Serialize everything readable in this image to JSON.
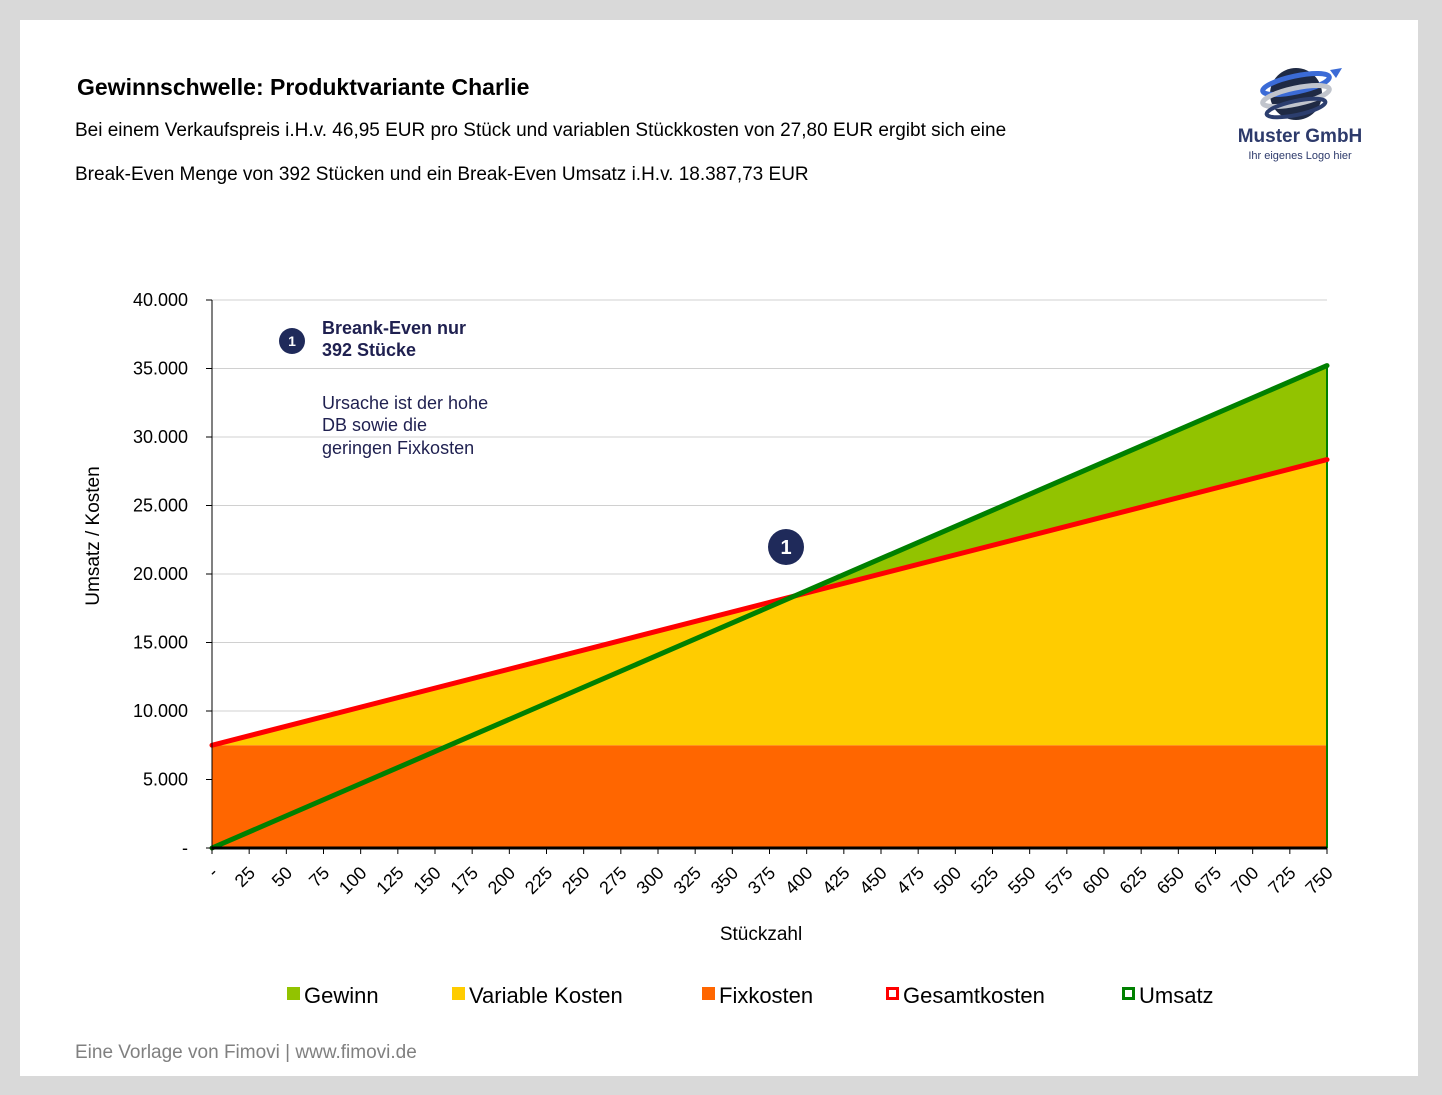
{
  "header": {
    "title": "Gewinnschwelle: Produktvariante Charlie",
    "line1": "Bei einem Verkaufspreis i.H.v. 46,95 EUR pro Stück und variablen Stückkosten von 27,80 EUR ergibt sich eine",
    "line2": "Break-Even Menge von 392 Stücken und ein Break-Even Umsatz i.H.v. 18.387,73 EUR"
  },
  "logo": {
    "name": "Muster GmbH",
    "sub": "Ihr eigenes Logo hier"
  },
  "footer": "Eine Vorlage von Fimovi  |  www.fimovi.de",
  "annotation": {
    "badge": "1",
    "bold1": "Breank-Even nur",
    "bold2": "392 Stücke",
    "text1": "Ursache ist der hohe",
    "text2": "DB sowie die",
    "text3": "geringen Fixkosten"
  },
  "chart_data": {
    "type": "area",
    "xlabel": "Stückzahl",
    "ylabel": "Umsatz / Kosten",
    "xlim": [
      0,
      750
    ],
    "ylim": [
      0,
      40000
    ],
    "grid": true,
    "legend_position": "bottom",
    "x_ticks": [
      "-",
      "25",
      "50",
      "75",
      "100",
      "125",
      "150",
      "175",
      "200",
      "225",
      "250",
      "275",
      "300",
      "325",
      "350",
      "375",
      "400",
      "425",
      "450",
      "475",
      "500",
      "525",
      "550",
      "575",
      "600",
      "625",
      "650",
      "675",
      "700",
      "725",
      "750"
    ],
    "y_ticks": [
      "-",
      "5.000",
      "10.000",
      "15.000",
      "20.000",
      "25.000",
      "30.000",
      "35.000",
      "40.000"
    ],
    "y_tick_values": [
      0,
      5000,
      10000,
      15000,
      20000,
      25000,
      30000,
      35000,
      40000
    ],
    "unit_price": 46.95,
    "unit_variable_cost": 27.8,
    "fixed_costs": 7500,
    "break_even_quantity": 392,
    "break_even_revenue": 18387.73,
    "series": [
      {
        "name": "Gewinn",
        "kind": "area",
        "color": "#92c300",
        "x": [
          392,
          750
        ],
        "lower": [
          18387.73,
          28350
        ],
        "upper": [
          18387.73,
          35212.5
        ]
      },
      {
        "name": "Variable Kosten",
        "kind": "area",
        "color": "#ffcc00",
        "x": [
          0,
          750
        ],
        "lower": [
          7500,
          7500
        ],
        "upper": [
          7500,
          28350
        ]
      },
      {
        "name": "Fixkosten",
        "kind": "area",
        "color": "#ff6600",
        "x": [
          0,
          750
        ],
        "lower": [
          0,
          0
        ],
        "upper": [
          7500,
          7500
        ]
      },
      {
        "name": "Gesamtkosten",
        "kind": "line",
        "color": "#ff0000",
        "x": [
          0,
          750
        ],
        "y": [
          7500,
          28350
        ]
      },
      {
        "name": "Umsatz",
        "kind": "line",
        "color": "#008000",
        "x": [
          0,
          750
        ],
        "y": [
          0,
          35212.5
        ]
      }
    ]
  }
}
